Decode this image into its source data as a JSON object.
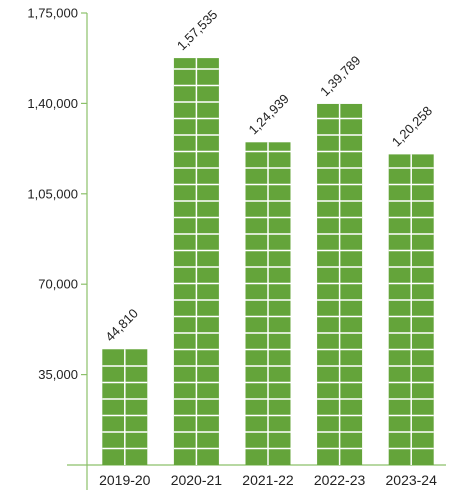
{
  "colors": {
    "bar": "#64a43a",
    "axis": "#8cc06a",
    "grid_line": "#ffffff"
  },
  "chart_data": {
    "type": "bar",
    "title": "",
    "xlabel": "",
    "ylabel": "",
    "categories": [
      "2019-20",
      "2020-21",
      "2021-22",
      "2022-23",
      "2023-24"
    ],
    "values": [
      44810,
      157535,
      124939,
      139789,
      120258
    ],
    "value_labels": [
      "44,810",
      "1,57,535",
      "1,24,939",
      "1,39,789",
      "1,20,258"
    ],
    "ylim": [
      0,
      175000
    ],
    "y_ticks": [
      35000,
      70000,
      105000,
      140000,
      175000
    ],
    "y_tick_labels": [
      "35,000",
      "70,000",
      "1,05,000",
      "1,40,000",
      "1,75,000"
    ],
    "grid": false,
    "legend": "none"
  }
}
